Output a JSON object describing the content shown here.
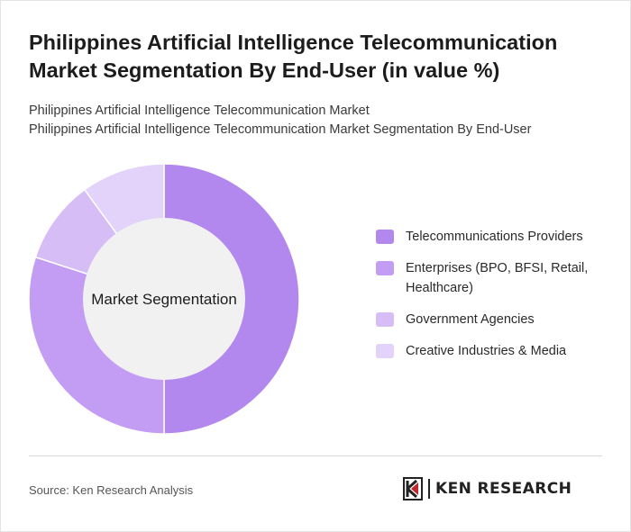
{
  "header": {
    "title": "Philippines Artificial Intelligence Telecommunication Market Segmentation By End-User (in value %)",
    "subtitle_line1": "Philippines Artificial Intelligence Telecommunication Market",
    "subtitle_line2": "Philippines Artificial Intelligence Telecommunication Market Segmentation By End-User"
  },
  "chart_data": {
    "type": "pie",
    "variant": "donut",
    "center_label": "Market Segmentation",
    "categories": [
      "Telecommunications Providers",
      "Enterprises (BPO, BFSI, Retail, Healthcare)",
      "Government Agencies",
      "Creative Industries & Media"
    ],
    "values": [
      50,
      30,
      10,
      10
    ],
    "colors": [
      "#b388ee",
      "#c39df3",
      "#d6bdf6",
      "#e3d2f9"
    ],
    "center_color": "#f2f1f1",
    "legend_position": "right"
  },
  "footer": {
    "source": "Source: Ken Research Analysis",
    "logo_text": "KEN RESEARCH"
  }
}
